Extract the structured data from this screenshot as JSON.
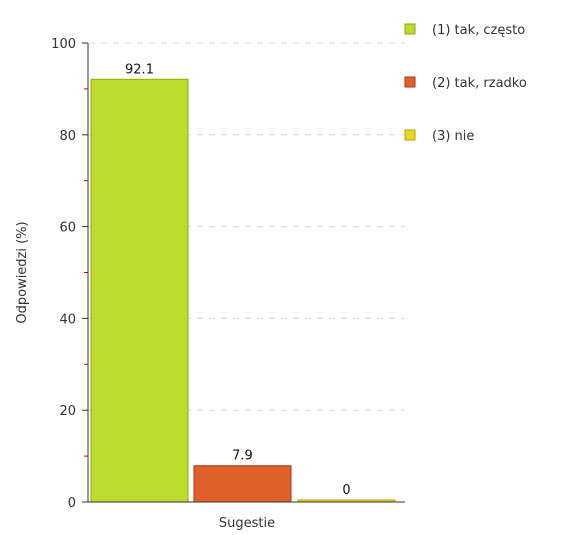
{
  "chart_data": {
    "type": "bar",
    "title": "",
    "xlabel": "Sugestie",
    "ylabel": "Odpowiedzi (%)",
    "ylim": [
      0,
      100
    ],
    "yticks": [
      0,
      20,
      40,
      60,
      80,
      100
    ],
    "grid": true,
    "legend_position": "top-right",
    "categories": [
      "Sugestie"
    ],
    "series": [
      {
        "name": "(1) tak, często",
        "values": [
          92.1
        ],
        "color": "#bddc2d",
        "stroke": "#8cab10"
      },
      {
        "name": "(2) tak, rzadko",
        "values": [
          7.9
        ],
        "color": "#e0602a",
        "stroke": "#a83a10"
      },
      {
        "name": "(3) nie",
        "values": [
          0
        ],
        "color": "#ead81e",
        "stroke": "#b8a210"
      }
    ]
  }
}
